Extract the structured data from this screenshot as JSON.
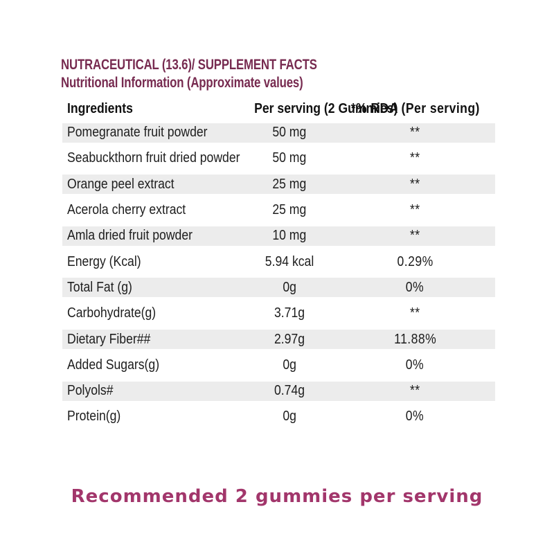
{
  "header": {
    "title": "NUTRACEUTICAL (13.6)/ SUPPLEMENT FACTS",
    "subtitle": "Nutritional Information (Approximate values)"
  },
  "table": {
    "columns": [
      "Ingredients",
      "Per serving (2 Gummies)",
      "*% RDA (Per serving)"
    ],
    "rows": [
      {
        "ingredient": "Pomegranate fruit powder",
        "per_serving": "50 mg",
        "rda": "**"
      },
      {
        "ingredient": "Seabuckthorn fruit dried powder",
        "per_serving": "50 mg",
        "rda": "**"
      },
      {
        "ingredient": "Orange peel extract",
        "per_serving": "25 mg",
        "rda": "**"
      },
      {
        "ingredient": "Acerola cherry extract",
        "per_serving": "25 mg",
        "rda": "**"
      },
      {
        "ingredient": "Amla dried fruit powder",
        "per_serving": "10 mg",
        "rda": "**"
      },
      {
        "ingredient": "Energy (Kcal)",
        "per_serving": "5.94 kcal",
        "rda": "0.29%"
      },
      {
        "ingredient": "Total Fat (g)",
        "per_serving": "0g",
        "rda": "0%"
      },
      {
        "ingredient": "Carbohydrate(g)",
        "per_serving": "3.71g",
        "rda": "**"
      },
      {
        "ingredient": "Dietary Fiber##",
        "per_serving": "2.97g",
        "rda": "11.88%"
      },
      {
        "ingredient": "Added Sugars(g)",
        "per_serving": "0g",
        "rda": "0%"
      },
      {
        "ingredient": "Polyols#",
        "per_serving": "0.74g",
        "rda": "**"
      },
      {
        "ingredient": "Protein(g)",
        "per_serving": "0g",
        "rda": "0%"
      }
    ]
  },
  "footnote": "Recommended 2 gummies per serving",
  "colors": {
    "heading": "#772b50",
    "footnote": "#a2366b",
    "row_stripe": "#ececec",
    "body_text": "#1d1d1d"
  }
}
